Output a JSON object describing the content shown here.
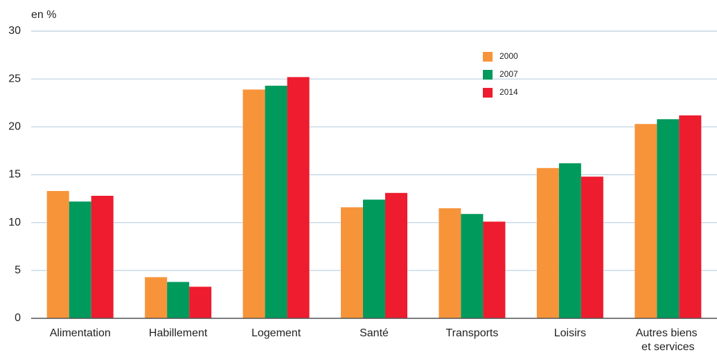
{
  "chart_data": {
    "type": "bar",
    "y_axis_label": "en %",
    "categories": [
      "Alimentation",
      "Habillement",
      "Logement",
      "Santé",
      "Transports",
      "Loisirs",
      "Autres biens et services"
    ],
    "series": [
      {
        "name": "2000",
        "color": "#f7943a",
        "values": [
          13.3,
          4.3,
          23.9,
          11.6,
          11.5,
          15.7,
          20.3
        ]
      },
      {
        "name": "2007",
        "color": "#009a5d",
        "values": [
          12.2,
          3.8,
          24.3,
          12.4,
          10.9,
          16.2,
          20.8
        ]
      },
      {
        "name": "2014",
        "color": "#ed1c2e",
        "values": [
          12.8,
          3.3,
          25.2,
          13.1,
          10.1,
          14.8,
          21.2
        ]
      }
    ],
    "ylim": [
      0,
      30
    ],
    "yticks": [
      0,
      5,
      10,
      15,
      20,
      25,
      30
    ],
    "grid": true,
    "legend": "top-right"
  }
}
